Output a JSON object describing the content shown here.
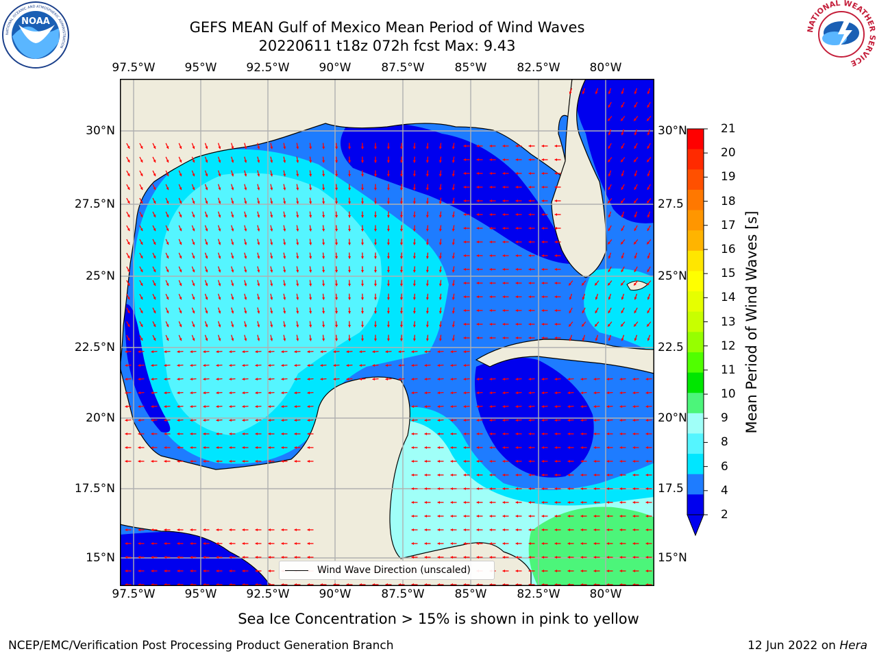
{
  "header": {
    "title_line1": "GEFS MEAN Gulf of Mexico Mean Period of Wind Waves",
    "title_line2": "20220611 t18z 072h fcst   Max: 9.43"
  },
  "logos": {
    "noaa_text": "NOAA",
    "noaa_ring_text": "NATIONAL OCEANIC AND ATMOSPHERIC ADMINISTRATION",
    "noaa_dept_text": "U.S. DEPARTMENT OF COMMERCE",
    "nws_ring_text": "NATIONAL WEATHER SERVICE"
  },
  "map": {
    "lon_ticks": [
      "97.5°W",
      "95°W",
      "92.5°W",
      "90°W",
      "87.5°W",
      "85°W",
      "82.5°W",
      "80°W"
    ],
    "lat_ticks_left": [
      "30°N",
      "27.5°N",
      "25°N",
      "22.5°N",
      "20°N",
      "17.5°N",
      "15°N"
    ],
    "lat_ticks_right": [
      "30°N",
      "27.5",
      "25°N",
      "22.5",
      "20°N",
      "17.5",
      "15°N"
    ],
    "legend_label": "Wind Wave Direction (unscaled)",
    "colors": {
      "land": "#efecdc",
      "ocean_2_4": "#1e7cff",
      "ocean_lt2": "#0000ee",
      "ocean_4_6": "#00e6ff",
      "ocean_6_8": "#55f5ff",
      "ocean_8_9": "#a0fff8",
      "ocean_9_10": "#4cf57a",
      "arrow": "#ff0000",
      "grid": "#b0b0b0"
    }
  },
  "colorbar": {
    "title": "Mean Period of Wind Waves [s]",
    "labels": [
      "21",
      "20",
      "19",
      "18",
      "17",
      "16",
      "15",
      "14",
      "13",
      "12",
      "11",
      "10",
      "9",
      "8",
      "6",
      "4",
      "2"
    ],
    "colors": [
      "#ff0000",
      "#ff2a00",
      "#ff5000",
      "#ff7800",
      "#ff9600",
      "#ffb400",
      "#ffe600",
      "#ffff00",
      "#e6ff00",
      "#c8ff00",
      "#96ff00",
      "#50ff00",
      "#00e600",
      "#4cf57a",
      "#a0fff8",
      "#55f5ff",
      "#00e6ff",
      "#1e7cff",
      "#0000ee"
    ]
  },
  "caption": "Sea Ice Concentration > 15% is shown in pink to yellow",
  "footer": {
    "left": "NCEP/EMC/Verification Post Processing Product Generation Branch",
    "right_date": "12 Jun 2022 on ",
    "right_host": "Hera"
  }
}
